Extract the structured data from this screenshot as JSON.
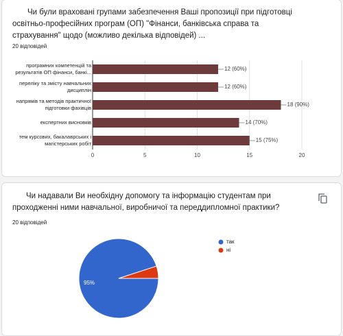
{
  "chart_data": [
    {
      "type": "hbar",
      "title": "Чи були враховані групами забезпечення Ваші пропозиції при підготовці освітньо-професійних програм (ОП) \"Фінанси, банківська справа та страхування\" щодо (можливо декілька відповідей) ...",
      "subtitle": "20 відповідей",
      "categories": [
        "програмних компетенцій та\nрезультатів ОП фінанси, банкі...",
        "переліку та змісту навчальних\nдисциплін",
        "напрямів та методів практичної\nпідготовки фахівців",
        "експертних висновків",
        "тем курсових, бакалаврських і\nмагістерських робіт"
      ],
      "values": [
        12,
        12,
        18,
        14,
        15
      ],
      "value_labels": [
        "12 (60%)",
        "12 (60%)",
        "18 (90%)",
        "14 (70%)",
        "15 (75%)"
      ],
      "color": "#6d3b3b",
      "xlim": [
        0,
        20
      ],
      "xticks": [
        0,
        5,
        10,
        15,
        20
      ],
      "grid": true
    },
    {
      "type": "pie",
      "title": "Чи надавали Ви необхідну допомогу та інформацію студентам при проходженні ними навчальної, виробничої та переддипломної практики?",
      "subtitle": "20 відповідей",
      "categories": [
        "так",
        "ні"
      ],
      "values": [
        95,
        5
      ],
      "value_labels": [
        "95%",
        null
      ],
      "colors": [
        "#3366cc",
        "#dc3912"
      ],
      "legend": "right"
    }
  ]
}
